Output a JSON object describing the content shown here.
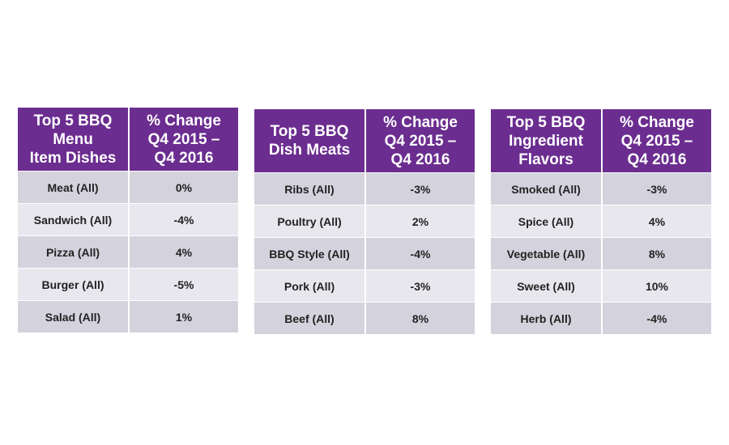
{
  "tables": [
    {
      "header": [
        [
          "Top 5 BBQ",
          "Menu",
          "Item Dishes"
        ],
        [
          "% Change",
          "Q4 2015 –",
          "Q4 2016"
        ]
      ],
      "rows": [
        [
          "Meat (All)",
          "0%"
        ],
        [
          "Sandwich (All)",
          "-4%"
        ],
        [
          "Pizza (All)",
          "4%"
        ],
        [
          "Burger (All)",
          "-5%"
        ],
        [
          "Salad (All)",
          "1%"
        ]
      ]
    },
    {
      "header": [
        [
          "Top 5 BBQ",
          "Dish Meats"
        ],
        [
          "% Change",
          "Q4 2015 –",
          "Q4 2016"
        ]
      ],
      "rows": [
        [
          "Ribs (All)",
          "-3%"
        ],
        [
          "Poultry (All)",
          "2%"
        ],
        [
          "BBQ Style (All)",
          "-4%"
        ],
        [
          "Pork (All)",
          "-3%"
        ],
        [
          "Beef (All)",
          "8%"
        ]
      ]
    },
    {
      "header": [
        [
          "Top 5 BBQ",
          "Ingredient",
          "Flavors"
        ],
        [
          "% Change",
          "Q4 2015 –",
          "Q4 2016"
        ]
      ],
      "rows": [
        [
          "Smoked (All)",
          "-3%"
        ],
        [
          "Spice (All)",
          "4%"
        ],
        [
          "Vegetable (All)",
          "8%"
        ],
        [
          "Sweet (All)",
          "10%"
        ],
        [
          "Herb (All)",
          "-4%"
        ]
      ]
    }
  ]
}
